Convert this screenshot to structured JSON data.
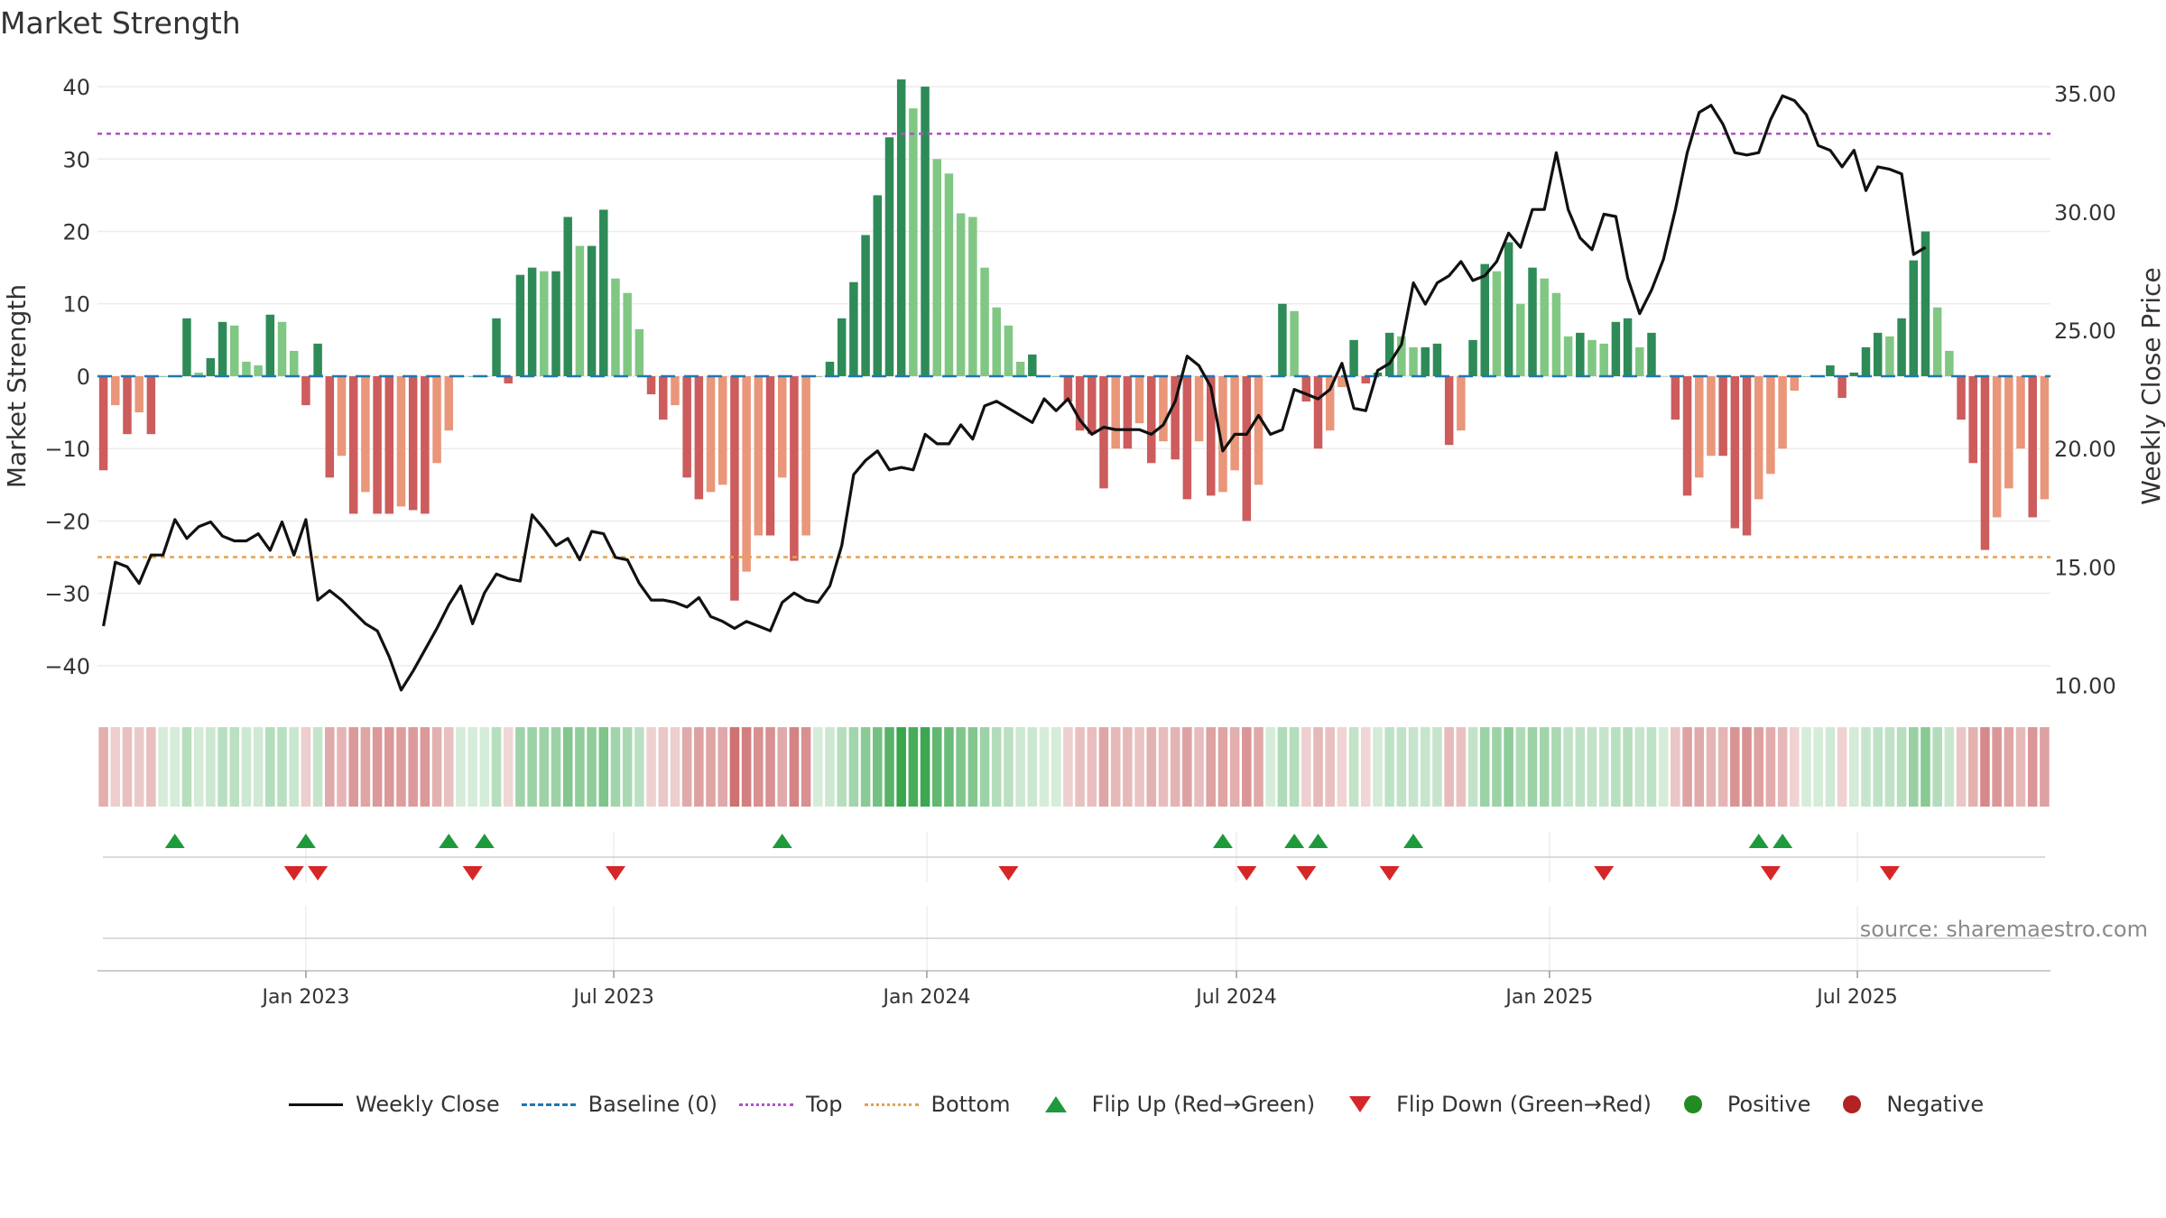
{
  "chart_data": {
    "type": "bar",
    "title": "Market Strength",
    "ylabel": "Market Strength",
    "y2label": "Weekly Close Price",
    "ylim": [
      -44,
      42
    ],
    "y2lim": [
      9.6,
      35.9
    ],
    "yticks": [
      -40,
      -30,
      -20,
      -10,
      0,
      10,
      20,
      30,
      40
    ],
    "yticks_labels": [
      "−40",
      "−30",
      "−20",
      "−10",
      "0",
      "10",
      "20",
      "30",
      "40"
    ],
    "y2ticks": [
      "35.00",
      "30.00",
      "25.00",
      "20.00",
      "15.00",
      "10.00"
    ],
    "x_start": "2022-09-04",
    "x_interval": "weekly",
    "xticks": [
      {
        "date": "2023-01-01",
        "label": "Jan 2023"
      },
      {
        "date": "2023-07-01",
        "label": "Jul 2023"
      },
      {
        "date": "2024-01-01",
        "label": "Jan 2024"
      },
      {
        "date": "2024-07-01",
        "label": "Jul 2024"
      },
      {
        "date": "2025-01-01",
        "label": "Jan 2025"
      },
      {
        "date": "2025-07-01",
        "label": "Jul 2025"
      }
    ],
    "top_level": 33.5,
    "bottom_level": -25,
    "strength": [
      -13,
      -4,
      -8,
      -5,
      -8,
      0,
      0,
      8,
      0.5,
      2.5,
      7.5,
      7,
      2,
      1.5,
      8.5,
      7.5,
      3.5,
      -4,
      4.5,
      -14,
      -11,
      -19,
      -16,
      -19,
      -19,
      -18,
      -18.5,
      -19,
      -12,
      -7.5,
      0,
      0,
      0,
      8,
      -1,
      14,
      15,
      14.5,
      14.5,
      22,
      18,
      18,
      23,
      13.5,
      11.5,
      6.5,
      -2.5,
      -6,
      -4,
      -14,
      -17,
      -16,
      -15,
      -31,
      -27,
      -22,
      -22,
      -14,
      -25.5,
      -22,
      0,
      2,
      8,
      13,
      19.5,
      25,
      33,
      41,
      37,
      40,
      30,
      28,
      22.5,
      22,
      15,
      9.5,
      7,
      2,
      3,
      0,
      0,
      -3.5,
      -7.5,
      -8,
      -15.5,
      -10,
      -10,
      -6.5,
      -12,
      -9,
      -11.5,
      -17,
      -9,
      -16.5,
      -16,
      -13,
      -20,
      -15,
      0,
      10,
      9,
      -3.5,
      -10,
      -7.5,
      -1.5,
      5,
      -1,
      0.5,
      6,
      5.5,
      4,
      4,
      4.5,
      -9.5,
      -7.5,
      5,
      15.5,
      14.5,
      18.5,
      10,
      15,
      13.5,
      11.5,
      5.5,
      6,
      5,
      4.5,
      7.5,
      8,
      4,
      6,
      0,
      -6,
      -16.5,
      -14,
      -11,
      -11,
      -21,
      -22,
      -17,
      -13.5,
      -10,
      -2,
      0,
      0,
      1.5,
      -3,
      0.5,
      4,
      6,
      5.5,
      8,
      16,
      20,
      9.5,
      3.5,
      -6,
      -12,
      -24,
      -19.5,
      -15.5,
      -10,
      -19.5,
      -17
    ],
    "weekly_close": [
      12.5,
      15.2,
      15,
      14.3,
      15.5,
      15.5,
      17,
      16.2,
      16.7,
      16.9,
      16.3,
      16.1,
      16.1,
      16.4,
      15.7,
      16.9,
      15.5,
      17,
      13.6,
      14,
      13.6,
      13.1,
      12.6,
      12.3,
      11.2,
      9.8,
      10.6,
      11.5,
      12.4,
      13.4,
      14.2,
      12.6,
      13.9,
      14.7,
      14.5,
      14.4,
      17.2,
      16.6,
      15.9,
      16.2,
      15.3,
      16.5,
      16.4,
      15.4,
      15.3,
      14.3,
      13.6,
      13.6,
      13.5,
      13.3,
      13.7,
      12.9,
      12.7,
      12.4,
      12.7,
      12.5,
      12.3,
      13.5,
      13.9,
      13.6,
      13.5,
      14.2,
      15.9,
      18.9,
      19.5,
      19.9,
      19.1,
      19.2,
      19.1,
      20.6,
      20.2,
      20.2,
      21,
      20.4,
      21.8,
      22,
      21.7,
      21.4,
      21.1,
      22.1,
      21.6,
      22.1,
      21.2,
      20.6,
      20.9,
      20.8,
      20.8,
      20.8,
      20.6,
      21,
      22,
      23.9,
      23.5,
      22.6,
      19.9,
      20.6,
      20.6,
      21.4,
      20.6,
      20.8,
      22.5,
      22.3,
      22.1,
      22.5,
      23.6,
      21.7,
      21.6,
      23.3,
      23.6,
      24.4,
      27,
      26.1,
      27,
      27.3,
      27.9,
      27.1,
      27.3,
      27.9,
      29.1,
      28.5,
      30.1,
      30.1,
      32.5,
      30.1,
      28.9,
      28.4,
      29.9,
      29.8,
      27.2,
      25.7,
      26.7,
      28,
      30.1,
      32.5,
      34.2,
      34.5,
      33.7,
      32.5,
      32.4,
      32.5,
      33.9,
      34.9,
      34.7,
      34.1,
      32.8,
      32.6,
      31.9,
      32.6,
      30.9,
      31.9,
      31.8,
      31.6,
      28.2,
      28.5
    ],
    "flip_up_index": [
      6,
      17,
      29,
      32,
      57,
      94,
      100,
      102,
      110,
      139,
      141
    ],
    "flip_down_index": [
      16,
      18,
      31,
      43,
      76,
      96,
      101,
      108,
      126,
      140,
      150
    ],
    "status_row_label": "",
    "series": [
      {
        "name": "Weekly Close",
        "kind": "line",
        "color": "#111111"
      },
      {
        "name": "Baseline (0)",
        "kind": "dash",
        "color": "#1f77b4"
      },
      {
        "name": "Top",
        "kind": "dotted",
        "color": "#b04fd0"
      },
      {
        "name": "Bottom",
        "kind": "dotted",
        "color": "#e5a04b"
      },
      {
        "name": "Flip Up (Red→Green)",
        "kind": "triangle-up",
        "color": "#1e9a3c"
      },
      {
        "name": "Flip Down (Green→Red)",
        "kind": "triangle-down",
        "color": "#d62728"
      },
      {
        "name": "Positive",
        "kind": "dot",
        "color": "#228b22"
      },
      {
        "name": "Negative",
        "kind": "dot",
        "color": "#b22222"
      }
    ],
    "colors": {
      "pos_rising": "#2e8b57",
      "pos_falling": "#81c784",
      "neg_deepening": "#cd5c5c",
      "neg_recovering": "#e9967a"
    }
  },
  "source_note": "source: sharemaestro.com"
}
